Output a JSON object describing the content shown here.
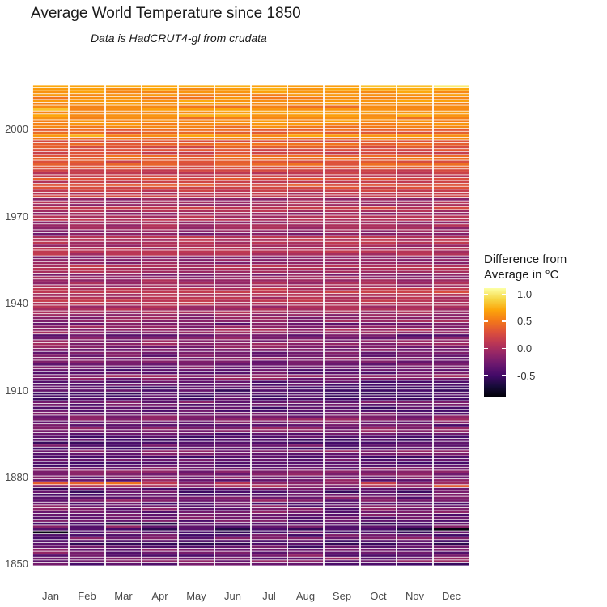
{
  "header": {
    "title": "Average World Temperature since 1850",
    "subtitle": "Data is HadCRUT4-gl from crudata"
  },
  "chart_data": {
    "type": "heatmap",
    "title": "Average World Temperature since 1850",
    "subtitle": "Data is HadCRUT4-gl from crudata",
    "xlabel": "",
    "ylabel": "",
    "months": [
      "Jan",
      "Feb",
      "Mar",
      "Apr",
      "May",
      "Jun",
      "Jul",
      "Aug",
      "Sep",
      "Oct",
      "Nov",
      "Dec"
    ],
    "y": {
      "start_year": 1850,
      "end_year": 2015,
      "tick_years": [
        2000,
        1970,
        1940,
        1910,
        1880,
        1850
      ],
      "tick_labels": [
        "2000",
        "1970",
        "1940",
        "1910",
        "1880",
        "1850"
      ]
    },
    "annual_anomaly": [
      -0.37,
      -0.22,
      -0.22,
      -0.27,
      -0.25,
      -0.27,
      -0.36,
      -0.47,
      -0.47,
      -0.29,
      -0.35,
      -0.4,
      -0.52,
      -0.28,
      -0.49,
      -0.28,
      -0.27,
      -0.32,
      -0.27,
      -0.28,
      -0.27,
      -0.33,
      -0.23,
      -0.3,
      -0.37,
      -0.39,
      -0.38,
      -0.06,
      0.03,
      -0.24,
      -0.23,
      -0.21,
      -0.21,
      -0.25,
      -0.39,
      -0.39,
      -0.32,
      -0.4,
      -0.28,
      -0.17,
      -0.38,
      -0.33,
      -0.43,
      -0.45,
      -0.4,
      -0.36,
      -0.18,
      -0.17,
      -0.34,
      -0.23,
      -0.15,
      -0.21,
      -0.3,
      -0.39,
      -0.44,
      -0.33,
      -0.25,
      -0.43,
      -0.44,
      -0.45,
      -0.44,
      -0.44,
      -0.38,
      -0.37,
      -0.18,
      -0.11,
      -0.31,
      -0.39,
      -0.29,
      -0.26,
      -0.24,
      -0.19,
      -0.28,
      -0.24,
      -0.26,
      -0.19,
      -0.08,
      -0.17,
      -0.18,
      -0.33,
      -0.11,
      -0.07,
      -0.12,
      -0.26,
      -0.11,
      -0.14,
      -0.12,
      -0.02,
      0.0,
      -0.01,
      0.07,
      0.1,
      0.04,
      0.05,
      0.19,
      0.09,
      -0.05,
      -0.04,
      -0.04,
      -0.08,
      -0.16,
      -0.01,
      0.03,
      0.08,
      -0.12,
      -0.13,
      -0.19,
      0.05,
      0.06,
      0.03,
      -0.02,
      0.06,
      0.04,
      0.07,
      -0.2,
      -0.1,
      -0.05,
      -0.02,
      -0.07,
      0.09,
      0.03,
      -0.08,
      0.02,
      0.16,
      -0.07,
      0.01,
      -0.11,
      0.18,
      0.07,
      0.17,
      0.26,
      0.3,
      0.14,
      0.31,
      0.16,
      0.12,
      0.18,
      0.32,
      0.38,
      0.28,
      0.43,
      0.4,
      0.23,
      0.27,
      0.31,
      0.44,
      0.32,
      0.51,
      0.63,
      0.39,
      0.42,
      0.54,
      0.59,
      0.6,
      0.54,
      0.67,
      0.62,
      0.63,
      0.51,
      0.63,
      0.68,
      0.57,
      0.6,
      0.64,
      0.67,
      0.76
    ],
    "monthly_cell_overrides": [
      {
        "year": 2015,
        "month": 12,
        "value": 1.01
      },
      {
        "year": 2015,
        "month": 11,
        "value": 0.81
      },
      {
        "year": 2015,
        "month": 10,
        "value": 0.82
      },
      {
        "year": 2007,
        "month": 1,
        "value": 0.83
      },
      {
        "year": 1998,
        "month": 2,
        "value": 0.76
      },
      {
        "year": 1878,
        "month": 1,
        "value": 0.37
      },
      {
        "year": 1878,
        "month": 2,
        "value": 0.4
      },
      {
        "year": 1878,
        "month": 3,
        "value": 0.47
      },
      {
        "year": 1877,
        "month": 12,
        "value": 0.35
      },
      {
        "year": 1862,
        "month": 12,
        "value": -0.86
      },
      {
        "year": 1861,
        "month": 1,
        "value": -0.85
      }
    ],
    "monthly_noise_amplitude": {
      "until_1880": 0.18,
      "until_1935": 0.13,
      "after": 0.09
    },
    "color_scale": {
      "name": "inferno",
      "domain": [
        -0.9,
        1.11
      ],
      "stops": [
        "#000004",
        "#160B39",
        "#420A68",
        "#6A176E",
        "#932667",
        "#BC3754",
        "#DD513A",
        "#F37819",
        "#FCA50A",
        "#F6D746",
        "#FCFFA4"
      ]
    },
    "legend": {
      "title_line1": "Difference from",
      "title_line2": "Average in °C",
      "tick_values": [
        1.0,
        0.5,
        0.0,
        -0.5
      ],
      "tick_labels": [
        "1.0",
        "0.5",
        "0.0",
        "-0.5"
      ]
    }
  },
  "colors": {
    "background": "#FFFFFF",
    "title_text": "#1A1A1A",
    "axis_text": "#4A4A4A",
    "tile_gap": "#FFFFFF"
  }
}
